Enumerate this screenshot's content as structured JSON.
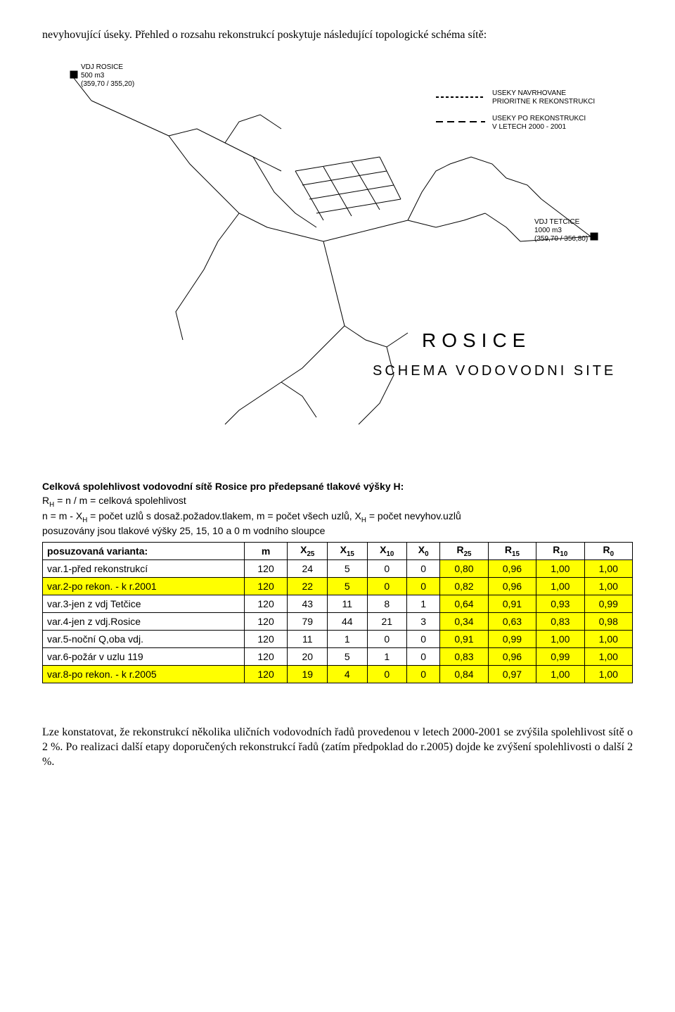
{
  "intro_para": "nevyhovující úseky. Přehled o rozsahu rekonstrukcí poskytuje následující topologické schéma sítě:",
  "diagram": {
    "vdj_rosice_label": "VDJ ROSICE",
    "vdj_rosice_sub1": "500 m3",
    "vdj_rosice_sub2": "(359,70 / 355,20)",
    "vdj_tetcice_label": "VDJ TETCICE",
    "vdj_tetcice_sub1": "1000 m3",
    "vdj_tetcice_sub2": "(359,70 / 356,80)",
    "legend1": "USEKY NAVRHOVANE",
    "legend1b": "PRIORITNE K REKONSTRUKCI",
    "legend2": "USEKY PO REKONSTRUKCI",
    "legend2b": "V LETECH 2000 - 2001",
    "title": "ROSICE",
    "subtitle": "SCHEMA VODOVODNI SITE",
    "line_color": "#000000",
    "bg": "#ffffff"
  },
  "table_header": {
    "title": "Celková spolehlivost vodovodní sítě Rosice pro předepsané tlakové výšky H:",
    "line1_pre": "R",
    "line1_sub": "H",
    "line1_rest": " = n / m  = celková spolehlivost",
    "line2_pre": "n = m - X",
    "line2_sub": "H",
    "line2_mid": " = počet uzlů s dosaž.požadov.tlakem, m = počet všech uzlů, X",
    "line2_sub2": "H",
    "line2_end": " = počet nevyhov.uzlů",
    "line3": "posuzovány jsou tlakové výšky 25, 15, 10 a 0 m vodního sloupce"
  },
  "table": {
    "header_variant": "posuzovaná varianta:",
    "columns": [
      "m",
      "X25",
      "X15",
      "X10",
      "X0",
      "R25",
      "R15",
      "R10",
      "R0"
    ],
    "col_subscripts": [
      "",
      "25",
      "15",
      "10",
      "0",
      "25",
      "15",
      "10",
      "0"
    ],
    "col_bases": [
      "m",
      "X",
      "X",
      "X",
      "X",
      "R",
      "R",
      "R",
      "R"
    ],
    "highlight_color": "#ffff00",
    "rows": [
      {
        "label": "var.1-před rekonstrukcí",
        "vals": [
          "120",
          "24",
          "5",
          "0",
          "0",
          "0,80",
          "0,96",
          "1,00",
          "1,00"
        ],
        "hl": false
      },
      {
        "label": "var.2-po rekon. - k r.2001",
        "vals": [
          "120",
          "22",
          "5",
          "0",
          "0",
          "0,82",
          "0,96",
          "1,00",
          "1,00"
        ],
        "hl": true
      },
      {
        "label": "var.3-jen z vdj Tetčice",
        "vals": [
          "120",
          "43",
          "11",
          "8",
          "1",
          "0,64",
          "0,91",
          "0,93",
          "0,99"
        ],
        "hl": false
      },
      {
        "label": "var.4-jen z vdj.Rosice",
        "vals": [
          "120",
          "79",
          "44",
          "21",
          "3",
          "0,34",
          "0,63",
          "0,83",
          "0,98"
        ],
        "hl": false
      },
      {
        "label": "var.5-noční Q,oba vdj.",
        "vals": [
          "120",
          "11",
          "1",
          "0",
          "0",
          "0,91",
          "0,99",
          "1,00",
          "1,00"
        ],
        "hl": false
      },
      {
        "label": "var.6-požár v uzlu 119",
        "vals": [
          "120",
          "20",
          "5",
          "1",
          "0",
          "0,83",
          "0,96",
          "0,99",
          "1,00"
        ],
        "hl": false
      },
      {
        "label": "var.8-po rekon. - k r.2005",
        "vals": [
          "120",
          "19",
          "4",
          "0",
          "0",
          "0,84",
          "0,97",
          "1,00",
          "1,00"
        ],
        "hl": true
      }
    ],
    "r_col_start_index": 5,
    "r_col_bg": "#ffff00"
  },
  "closing_para": "Lze konstatovat, že rekonstrukcí několika uličních vodovodních řadů provedenou v letech 2000-2001 se zvýšila spolehlivost sítě o 2 %. Po realizaci další etapy doporučených rekonstrukcí řadů (zatím předpoklad do r.2005) dojde ke zvýšení spolehlivosti o další 2 %."
}
